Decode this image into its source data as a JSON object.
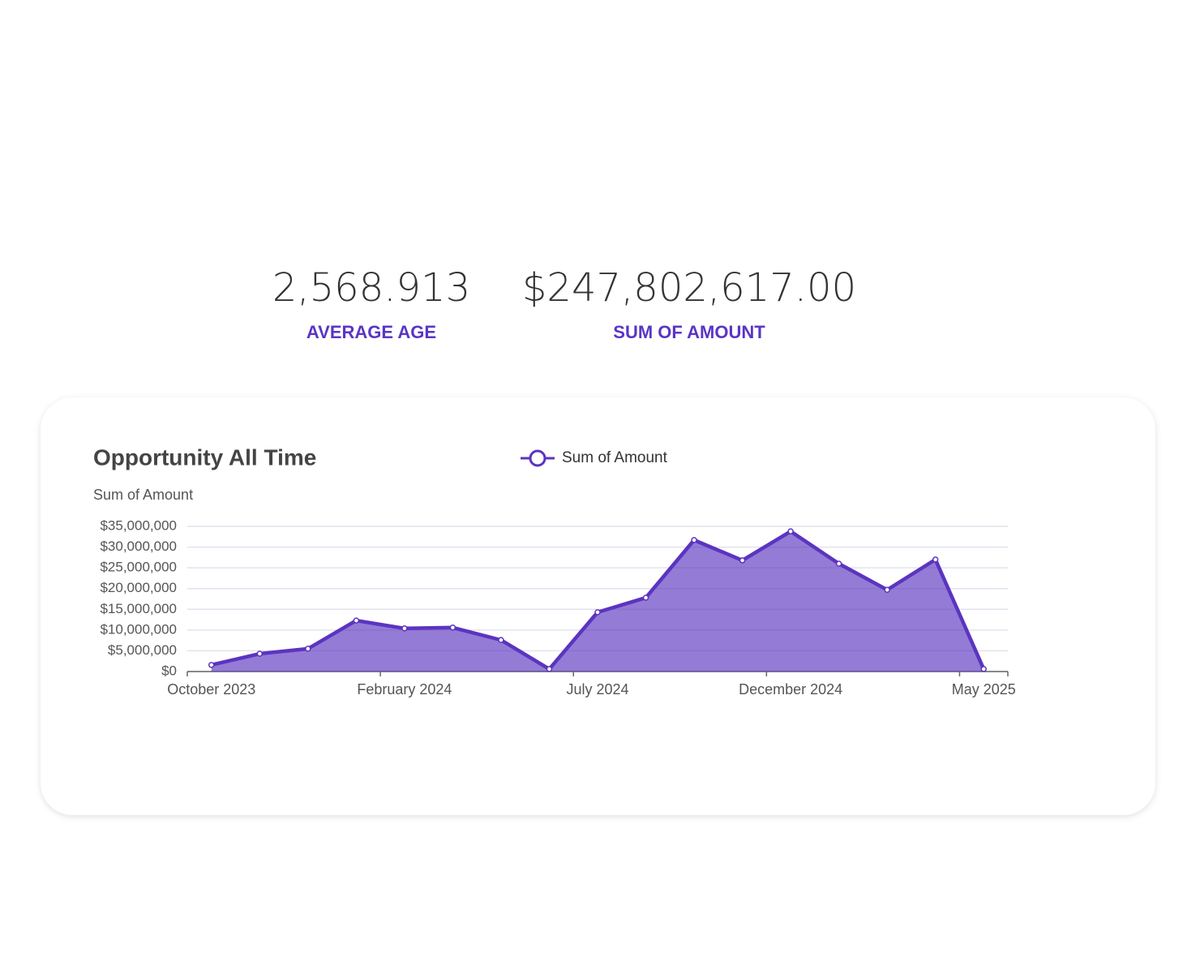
{
  "kpis": [
    {
      "value": "2,568.913",
      "label": "AVERAGE AGE"
    },
    {
      "value": "$247,802,617.00",
      "label": "SUM OF AMOUNT"
    }
  ],
  "chart_data": {
    "type": "area",
    "title": "Opportunity All Time",
    "y_label": "Sum of Amount",
    "categories": [
      "October 2023",
      null,
      null,
      null,
      "February 2024",
      null,
      null,
      null,
      "July 2024",
      null,
      null,
      null,
      "December 2024",
      null,
      null,
      null,
      "May 2025"
    ],
    "series": [
      {
        "name": "Sum of Amount",
        "color": "#5b34c0",
        "values": [
          1600000,
          4300000,
          5500000,
          12300000,
          10400000,
          10600000,
          7600000,
          600000,
          14300000,
          17800000,
          31700000,
          26800000,
          33800000,
          26000000,
          19700000,
          27000000,
          600000
        ]
      }
    ],
    "ylim": [
      0,
      35000000
    ],
    "yticks": [
      {
        "value": 0,
        "label": "$0"
      },
      {
        "value": 5000000,
        "label": "$5,000,000"
      },
      {
        "value": 10000000,
        "label": "$10,000,000"
      },
      {
        "value": 15000000,
        "label": "$15,000,000"
      },
      {
        "value": 20000000,
        "label": "$20,000,000"
      },
      {
        "value": 25000000,
        "label": "$25,000,000"
      },
      {
        "value": 30000000,
        "label": "$30,000,000"
      },
      {
        "value": 35000000,
        "label": "$35,000,000"
      }
    ],
    "grid": true,
    "legend": "top"
  }
}
